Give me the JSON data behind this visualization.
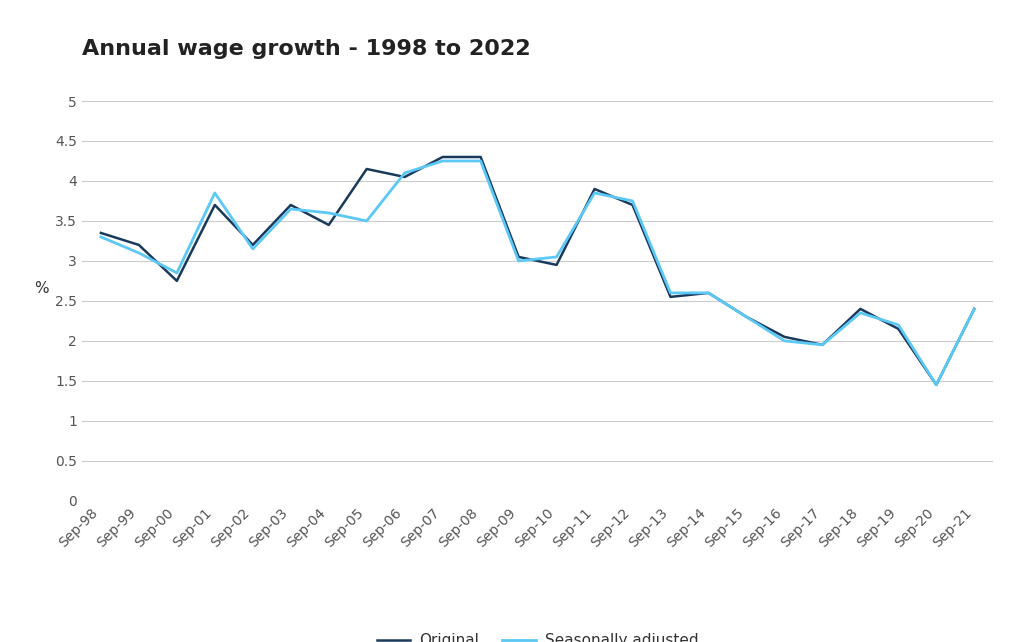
{
  "title": "Annual wage growth - 1998 to 2022",
  "ylabel": "%",
  "ylim": [
    0,
    5.3
  ],
  "yticks": [
    0,
    0.5,
    1.0,
    1.5,
    2.0,
    2.5,
    3.0,
    3.5,
    4.0,
    4.5,
    5.0
  ],
  "x_labels": [
    "Sep-98",
    "Sep-99",
    "Sep-00",
    "Sep-01",
    "Sep-02",
    "Sep-03",
    "Sep-04",
    "Sep-05",
    "Sep-06",
    "Sep-07",
    "Sep-08",
    "Sep-09",
    "Sep-10",
    "Sep-11",
    "Sep-12",
    "Sep-13",
    "Sep-14",
    "Sep-15",
    "Sep-16",
    "Sep-17",
    "Sep-18",
    "Sep-19",
    "Sep-20",
    "Sep-21"
  ],
  "seasonally_adjusted": [
    3.3,
    3.1,
    2.85,
    3.85,
    3.15,
    3.65,
    3.6,
    3.5,
    4.1,
    4.25,
    4.25,
    3.0,
    3.05,
    3.85,
    3.75,
    2.6,
    2.6,
    2.3,
    2.0,
    1.95,
    2.35,
    2.2,
    1.45,
    2.4
  ],
  "original": [
    3.35,
    3.2,
    2.75,
    3.7,
    3.2,
    3.7,
    3.45,
    4.15,
    4.05,
    4.3,
    4.3,
    3.05,
    2.95,
    3.9,
    3.7,
    2.55,
    2.6,
    2.3,
    2.05,
    1.95,
    2.4,
    2.15,
    1.45,
    2.4
  ],
  "seasonally_adjusted_color": "#5bc8f5",
  "original_color": "#1a3a5c",
  "background_color": "#ffffff",
  "grid_color": "#cccccc",
  "legend_sa": "Seasonally adjusted",
  "legend_orig": "Original",
  "title_fontsize": 16,
  "axis_fontsize": 11,
  "tick_fontsize": 10,
  "legend_fontsize": 11
}
